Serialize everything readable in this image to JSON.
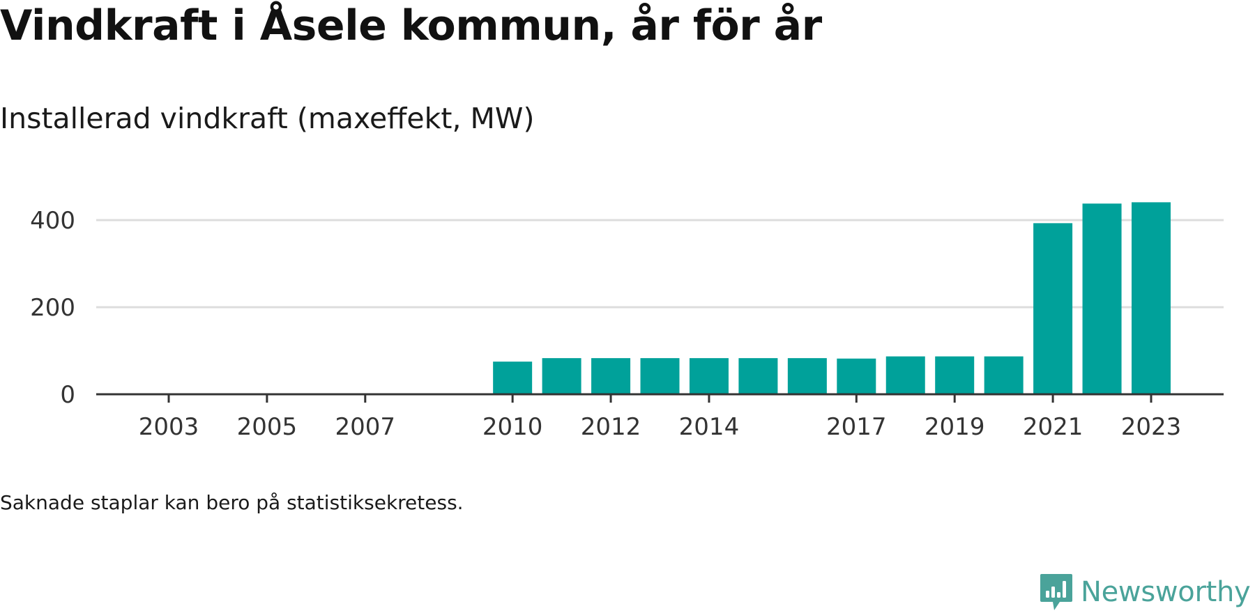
{
  "title": "Vindkraft i Åsele kommun, år för år",
  "subtitle": "Installerad vindkraft (maxeffekt, MW)",
  "footnote": "Saknade staplar kan bero på statistiksekretess.",
  "brand": {
    "name": "Newsworthy",
    "color": "#4aa39a"
  },
  "colors": {
    "bar": "#00a19a",
    "grid": "#dddddd",
    "axis": "#333333",
    "tick_text": "#333333"
  },
  "chart_data": {
    "type": "bar",
    "categories": [
      "2003",
      "2004",
      "2005",
      "2006",
      "2007",
      "2008",
      "2009",
      "2010",
      "2011",
      "2012",
      "2013",
      "2014",
      "2015",
      "2016",
      "2017",
      "2018",
      "2019",
      "2020",
      "2021",
      "2022",
      "2023"
    ],
    "x_tick_labels": [
      "2003",
      "2005",
      "2007",
      "2010",
      "2012",
      "2014",
      "2017",
      "2019",
      "2021",
      "2023"
    ],
    "values": [
      null,
      null,
      null,
      null,
      null,
      null,
      null,
      75,
      83,
      83,
      83,
      83,
      83,
      83,
      82,
      87,
      87,
      87,
      393,
      438,
      441
    ],
    "y_ticks": [
      0,
      200,
      400
    ],
    "ylim": [
      0,
      450
    ],
    "title": "Vindkraft i Åsele kommun, år för år",
    "ylabel": "Installerad vindkraft (maxeffekt, MW)",
    "xlabel": "",
    "grid": true
  }
}
